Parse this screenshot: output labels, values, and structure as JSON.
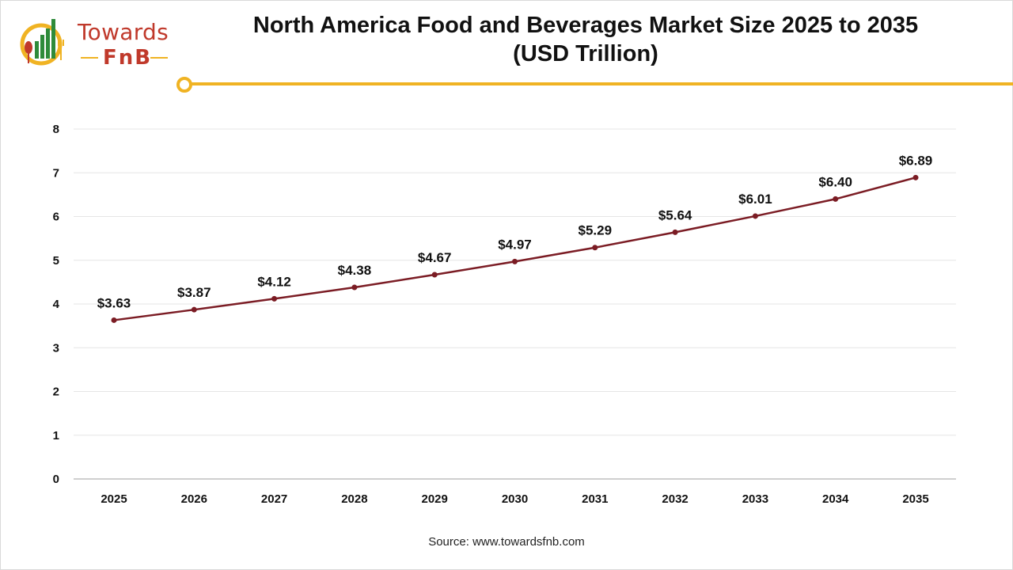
{
  "logo": {
    "line1": "Towards",
    "line2": "FnB"
  },
  "title_line1": "North America Food and Beverages Market Size 2025 to 2035",
  "title_line2": "(USD Trillion)",
  "source": "Source: www.towardsfnb.com",
  "colors": {
    "line": "#7b1c24",
    "accent": "#f0b323",
    "grid": "#e6e6e6",
    "logo_red": "#c0392b",
    "logo_green": "#2e8b3a"
  },
  "chart_data": {
    "type": "line",
    "title": "North America Food and Beverages Market Size 2025 to 2035 (USD Trillion)",
    "xlabel": "",
    "ylabel": "",
    "categories": [
      "2025",
      "2026",
      "2027",
      "2028",
      "2029",
      "2030",
      "2031",
      "2032",
      "2033",
      "2034",
      "2035"
    ],
    "series": [
      {
        "values": [
          3.63,
          3.87,
          4.12,
          4.38,
          4.67,
          4.97,
          5.29,
          5.64,
          6.01,
          6.4,
          6.89
        ],
        "labels": [
          "$3.63",
          "$3.87",
          "$4.12",
          "$4.38",
          "$4.67",
          "$4.97",
          "$5.29",
          "$5.64",
          "$6.01",
          "$6.40",
          "$6.89"
        ]
      }
    ],
    "ylim": [
      0,
      8
    ],
    "yticks": [
      0,
      1,
      2,
      3,
      4,
      5,
      6,
      7,
      8
    ],
    "grid": true,
    "legend": "none"
  }
}
